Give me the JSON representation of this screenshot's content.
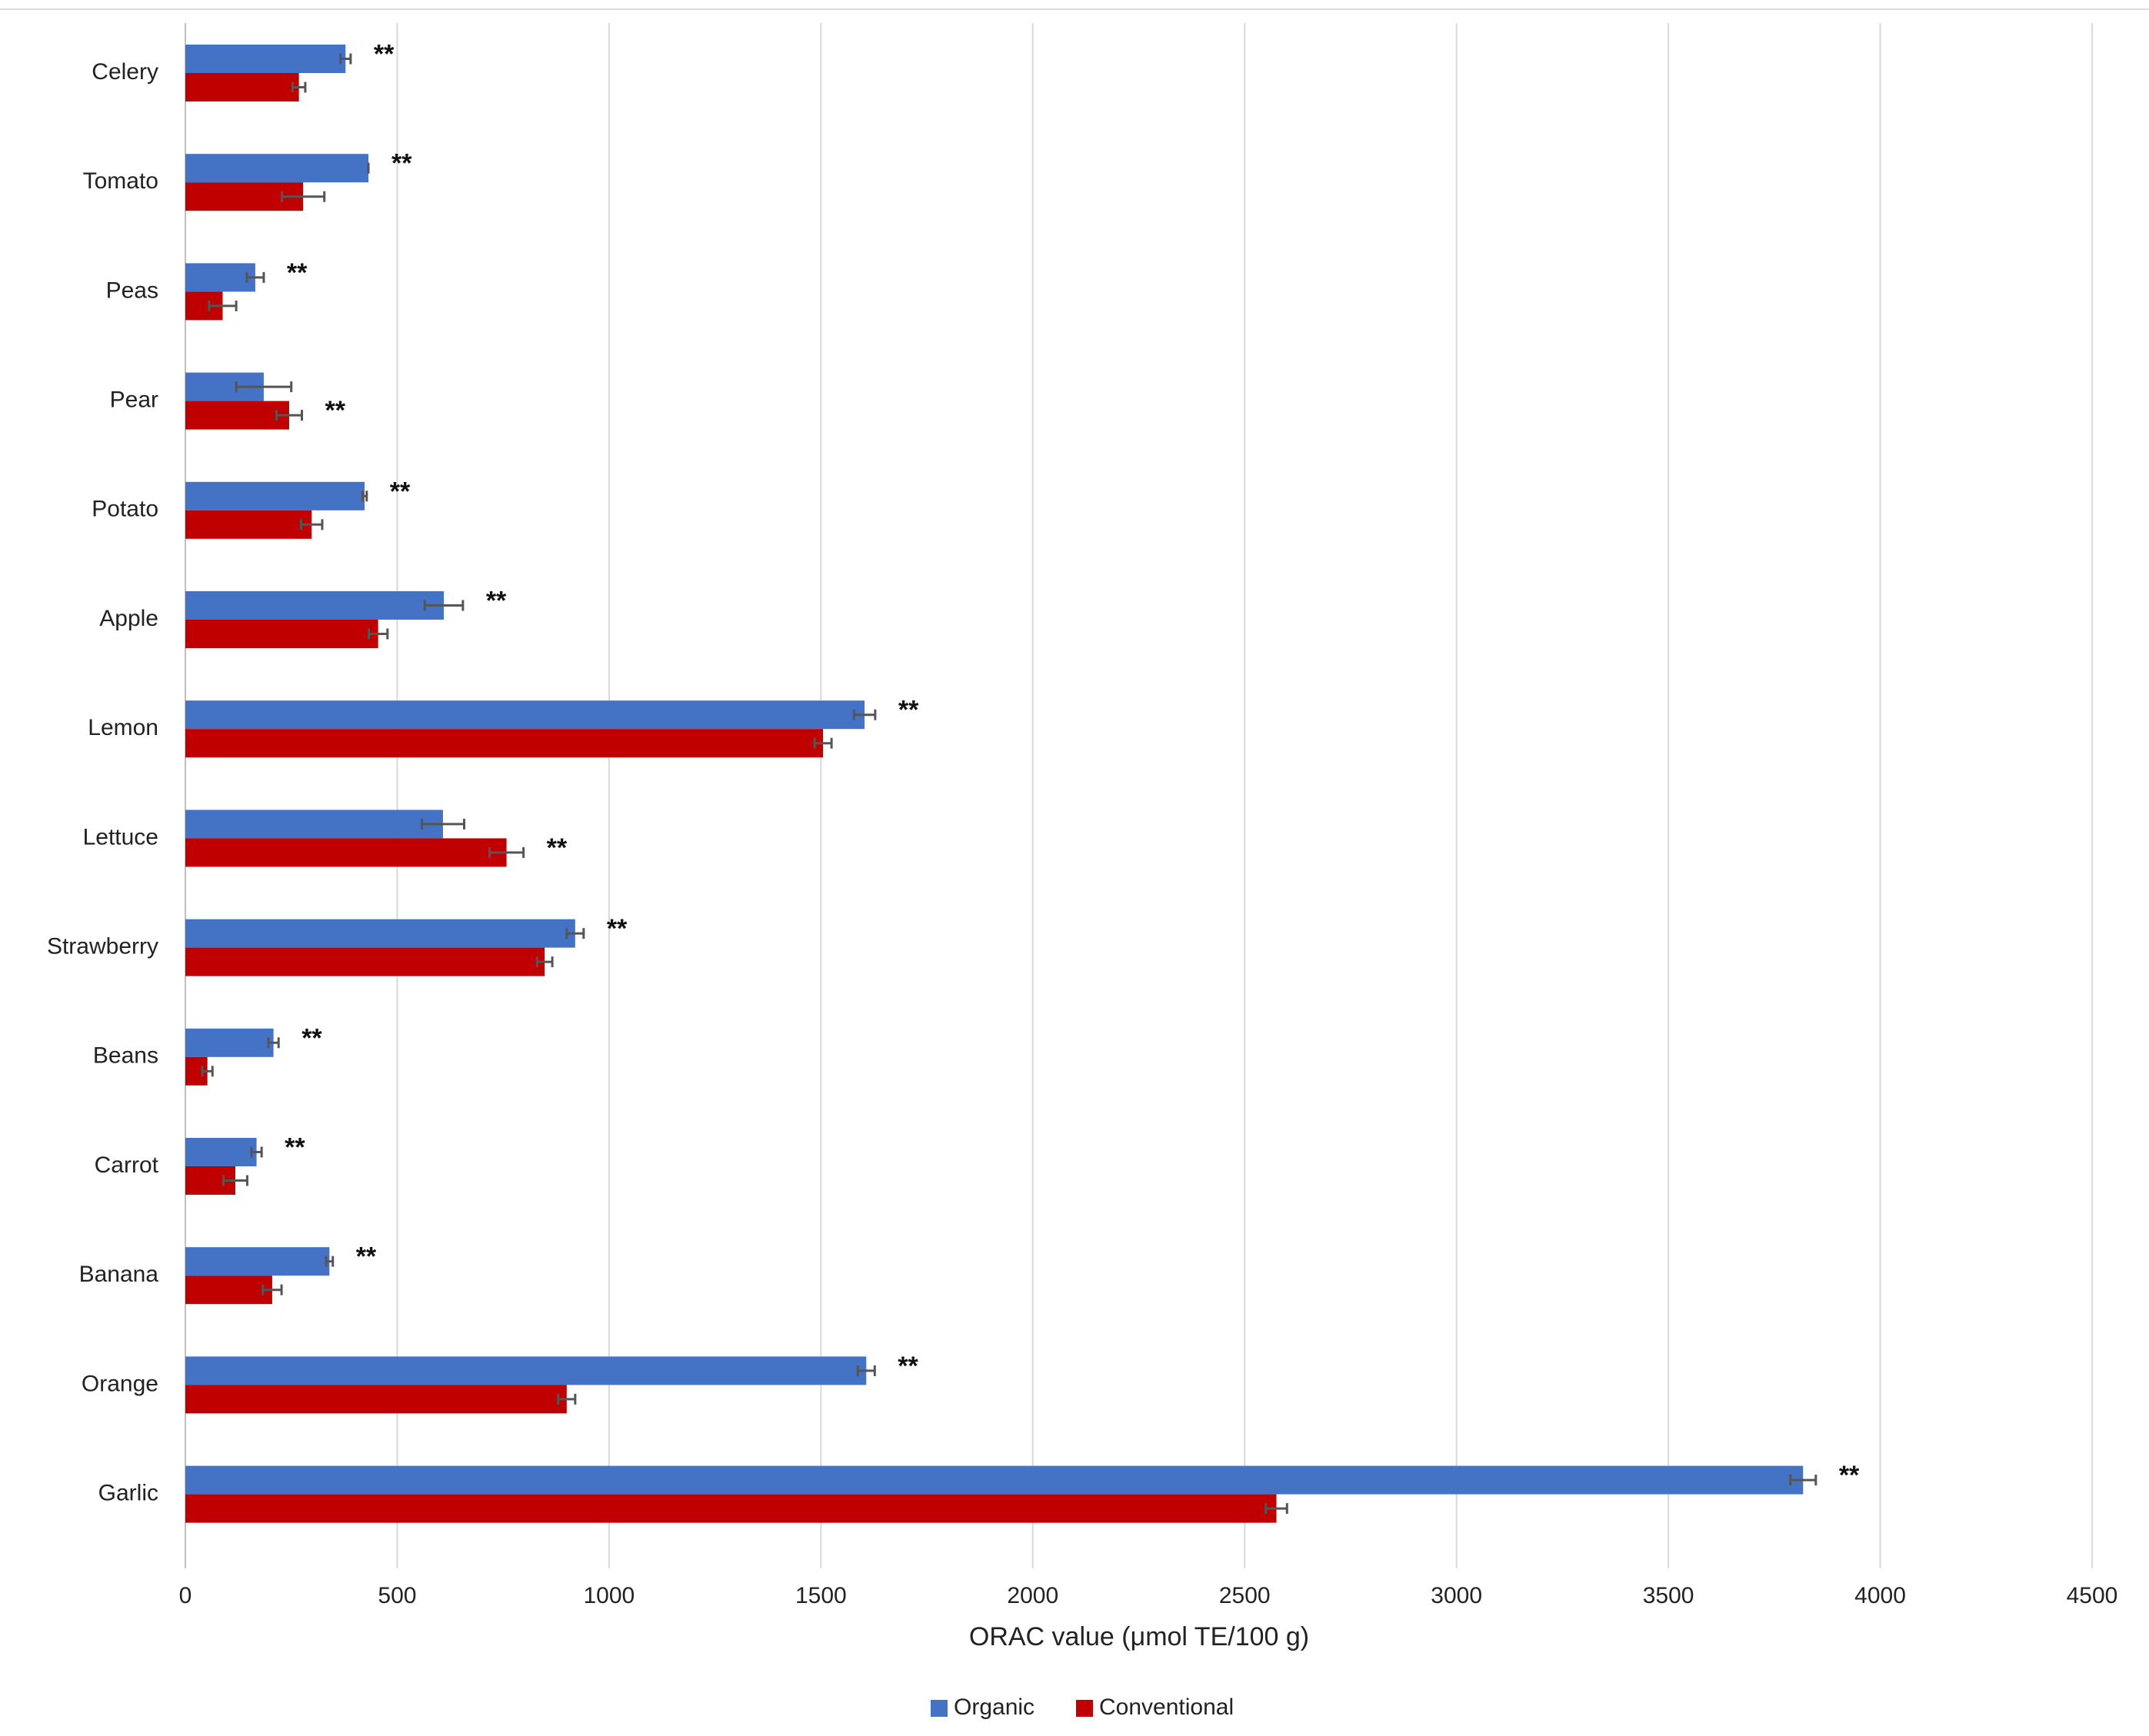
{
  "chart_data": {
    "type": "bar",
    "orientation": "horizontal",
    "xlabel": "ORAC value (μmol TE/100 g)",
    "xlim": [
      0,
      4500
    ],
    "xticks": [
      0,
      500,
      1000,
      1500,
      2000,
      2500,
      3000,
      3500,
      4000,
      4500
    ],
    "grid": true,
    "legend_position": "bottom-center",
    "categories": [
      "Celery",
      "Tomato",
      "Peas",
      "Pear",
      "Potato",
      "Apple",
      "Lemon",
      "Lettuce",
      "Strawberry",
      "Beans",
      "Carrot",
      "Banana",
      "Orange",
      "Garlic"
    ],
    "series": [
      {
        "name": "Organic",
        "color": "#4472C4",
        "values": [
          378,
          432,
          165,
          185,
          423,
          610,
          1603,
          608,
          920,
          208,
          168,
          340,
          1607,
          3818
        ],
        "errors": [
          12,
          0,
          20,
          65,
          5,
          45,
          25,
          50,
          20,
          12,
          12,
          8,
          20,
          30
        ]
      },
      {
        "name": "Conventional",
        "color": "#C00000",
        "values": [
          268,
          278,
          88,
          245,
          298,
          455,
          1505,
          758,
          848,
          52,
          118,
          205,
          900,
          2575
        ],
        "errors": [
          15,
          50,
          32,
          30,
          25,
          22,
          20,
          40,
          18,
          12,
          28,
          22,
          20,
          25
        ]
      }
    ],
    "significance": [
      "**",
      "**",
      "**",
      "**",
      "**",
      "**",
      "**",
      "**",
      "**",
      "**",
      "**",
      "**",
      "**",
      "**"
    ],
    "significance_series": [
      "Organic",
      "Organic",
      "Organic",
      "Conventional",
      "Organic",
      "Organic",
      "Organic",
      "Conventional",
      "Organic",
      "Organic",
      "Organic",
      "Organic",
      "Organic",
      "Organic"
    ]
  }
}
